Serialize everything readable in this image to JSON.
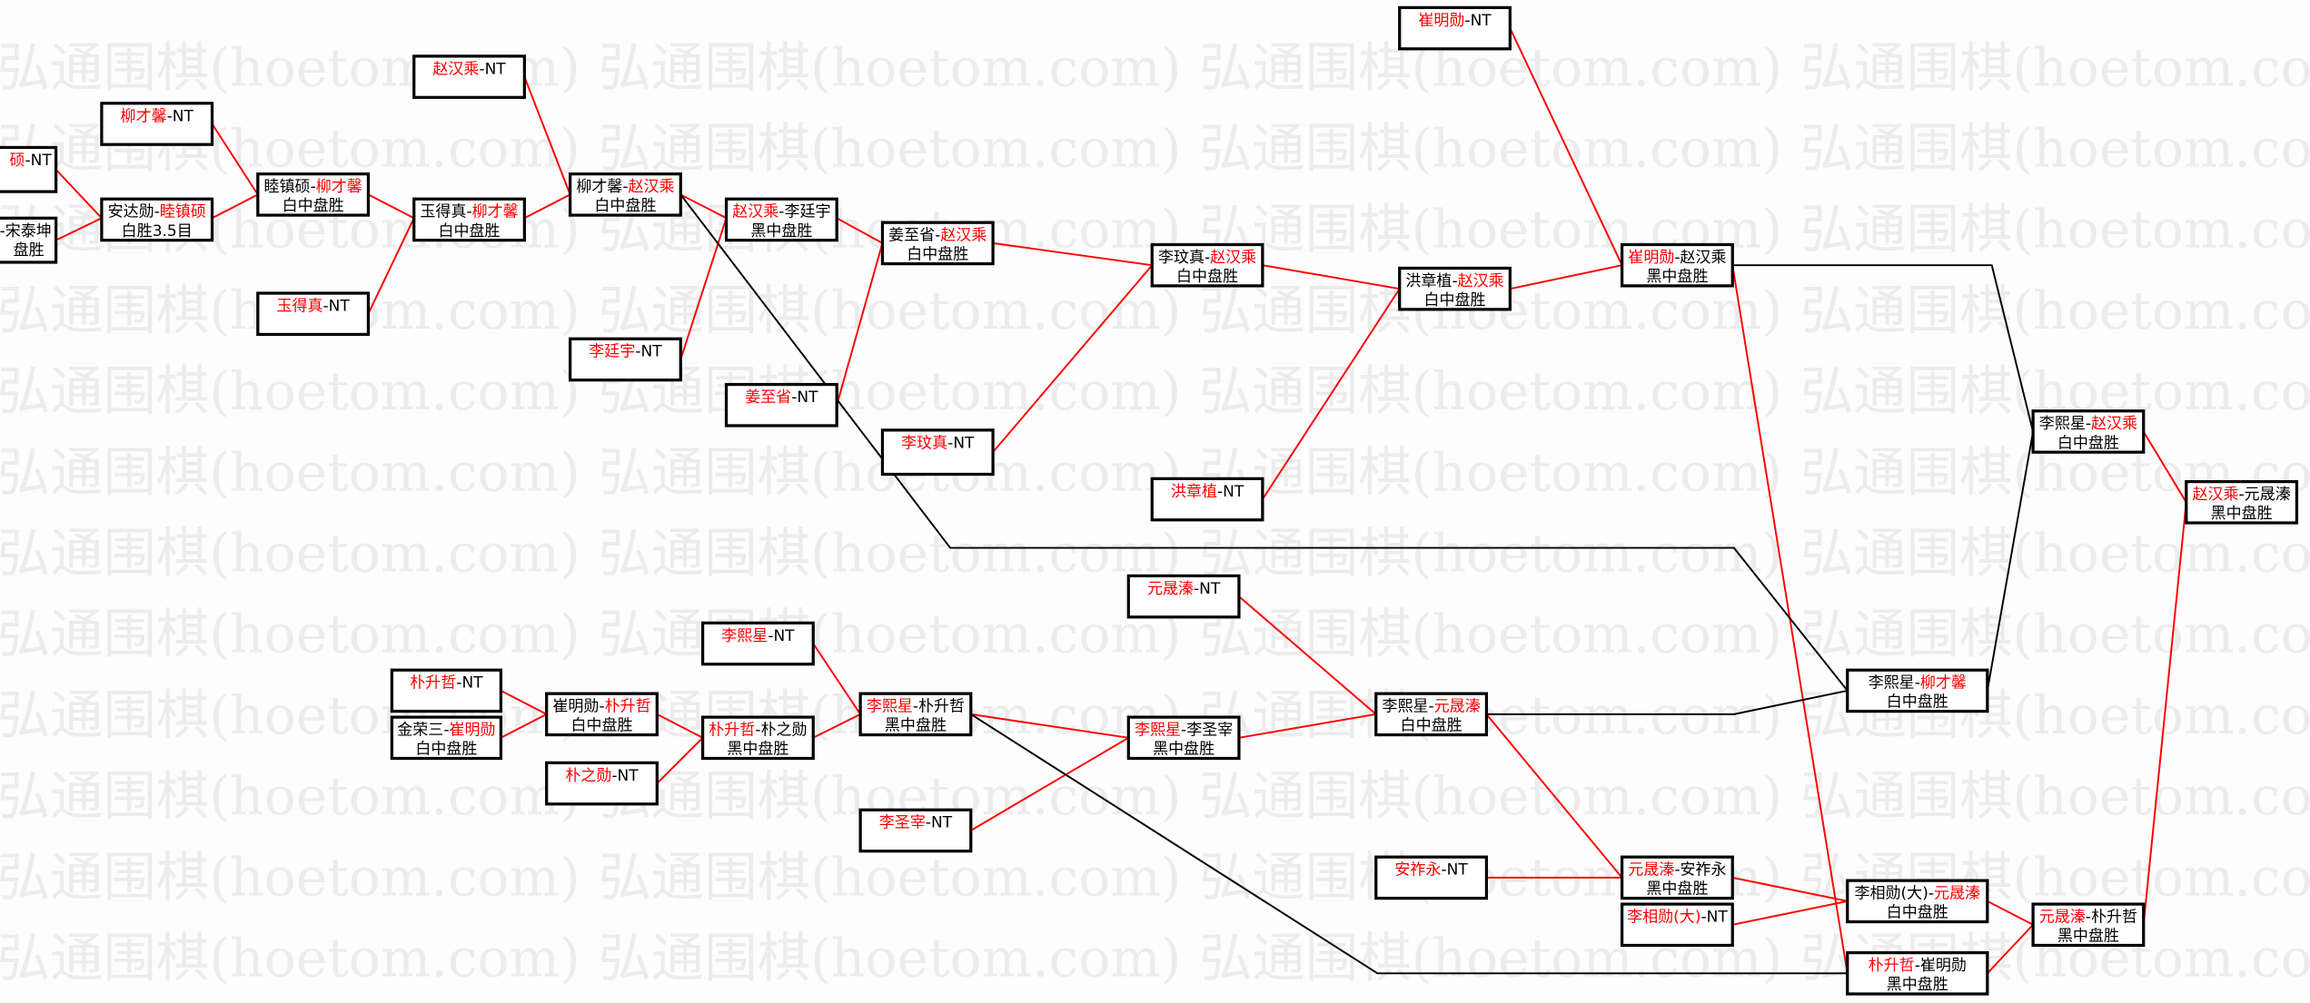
{
  "watermark": "弘通围棋(hoetom.com)",
  "colors": {
    "winner": "#ff0000",
    "line_winner": "#ff0000",
    "line_other": "#000000",
    "box_border": "#000000",
    "watermark": "#ececec"
  },
  "nodes": [
    {
      "p1": "硕",
      "p2": "NT",
      "red": 1,
      "result": ""
    },
    {
      "p1": "",
      "p2": "宋泰坤",
      "red": 0,
      "result": "盘胜"
    },
    {
      "p1": "柳才馨",
      "p2": "NT",
      "red": 1,
      "result": ""
    },
    {
      "p1": "安达勋",
      "p2": "睦镇硕",
      "red": 2,
      "result": "白胜3.5目"
    },
    {
      "p1": "睦镇硕",
      "p2": "柳才馨",
      "red": 2,
      "result": "白中盘胜"
    },
    {
      "p1": "玉得真",
      "p2": "NT",
      "red": 1,
      "result": ""
    },
    {
      "p1": "赵汉乘",
      "p2": "NT",
      "red": 1,
      "result": ""
    },
    {
      "p1": "玉得真",
      "p2": "柳才馨",
      "red": 2,
      "result": "白中盘胜"
    },
    {
      "p1": "柳才馨",
      "p2": "赵汉乘",
      "red": 2,
      "result": "白中盘胜"
    },
    {
      "p1": "李廷宇",
      "p2": "NT",
      "red": 1,
      "result": ""
    },
    {
      "p1": "赵汉乘",
      "p2": "李廷宇",
      "red": 1,
      "result": "黑中盘胜"
    },
    {
      "p1": "姜至省",
      "p2": "NT",
      "red": 1,
      "result": ""
    },
    {
      "p1": "姜至省",
      "p2": "赵汉乘",
      "red": 2,
      "result": "白中盘胜"
    },
    {
      "p1": "李玟真",
      "p2": "NT",
      "red": 1,
      "result": ""
    },
    {
      "p1": "李玟真",
      "p2": "赵汉乘",
      "red": 2,
      "result": "白中盘胜"
    },
    {
      "p1": "洪章植",
      "p2": "NT",
      "red": 1,
      "result": ""
    },
    {
      "p1": "洪章植",
      "p2": "赵汉乘",
      "red": 2,
      "result": "白中盘胜"
    },
    {
      "p1": "崔明勋",
      "p2": "NT",
      "red": 1,
      "result": ""
    },
    {
      "p1": "崔明勋",
      "p2": "赵汉乘",
      "red": 1,
      "result": "黑中盘胜"
    },
    {
      "p1": "李熙星",
      "p2": "赵汉乘",
      "red": 2,
      "result": "白中盘胜"
    },
    {
      "p1": "赵汉乘",
      "p2": "元晟溱",
      "red": 1,
      "result": "黑中盘胜"
    },
    {
      "p1": "朴升哲",
      "p2": "NT",
      "red": 1,
      "result": ""
    },
    {
      "p1": "金荣三",
      "p2": "崔明勋",
      "red": 2,
      "result": "白中盘胜"
    },
    {
      "p1": "崔明勋",
      "p2": "朴升哲",
      "red": 2,
      "result": "白中盘胜"
    },
    {
      "p1": "朴之勋",
      "p2": "NT",
      "red": 1,
      "result": ""
    },
    {
      "p1": "李熙星",
      "p2": "NT",
      "red": 1,
      "result": ""
    },
    {
      "p1": "朴升哲",
      "p2": "朴之勋",
      "red": 1,
      "result": "黑中盘胜"
    },
    {
      "p1": "李熙星",
      "p2": "朴升哲",
      "red": 1,
      "result": "黑中盘胜"
    },
    {
      "p1": "李圣宰",
      "p2": "NT",
      "red": 1,
      "result": ""
    },
    {
      "p1": "元晟溱",
      "p2": "NT",
      "red": 1,
      "result": ""
    },
    {
      "p1": "李熙星",
      "p2": "李圣宰",
      "red": 1,
      "result": "黑中盘胜"
    },
    {
      "p1": "李熙星",
      "p2": "元晟溱",
      "red": 2,
      "result": "白中盘胜"
    },
    {
      "p1": "安祚永",
      "p2": "NT",
      "red": 1,
      "result": ""
    },
    {
      "p1": "元晟溱",
      "p2": "安祚永",
      "red": 1,
      "result": "黑中盘胜"
    },
    {
      "p1": "李相勋(大)",
      "p2": "NT",
      "red": 1,
      "result": ""
    },
    {
      "p1": "李熙星",
      "p2": "柳才馨",
      "red": 2,
      "result": "白中盘胜"
    },
    {
      "p1": "李相勋(大)",
      "p2": "元晟溱",
      "red": 2,
      "result": "白中盘胜"
    },
    {
      "p1": "朴升哲",
      "p2": "崔明勋",
      "red": 1,
      "result": "黑中盘胜"
    },
    {
      "p1": "元晟溱",
      "p2": "朴升哲",
      "red": 1,
      "result": "黑中盘胜"
    }
  ]
}
